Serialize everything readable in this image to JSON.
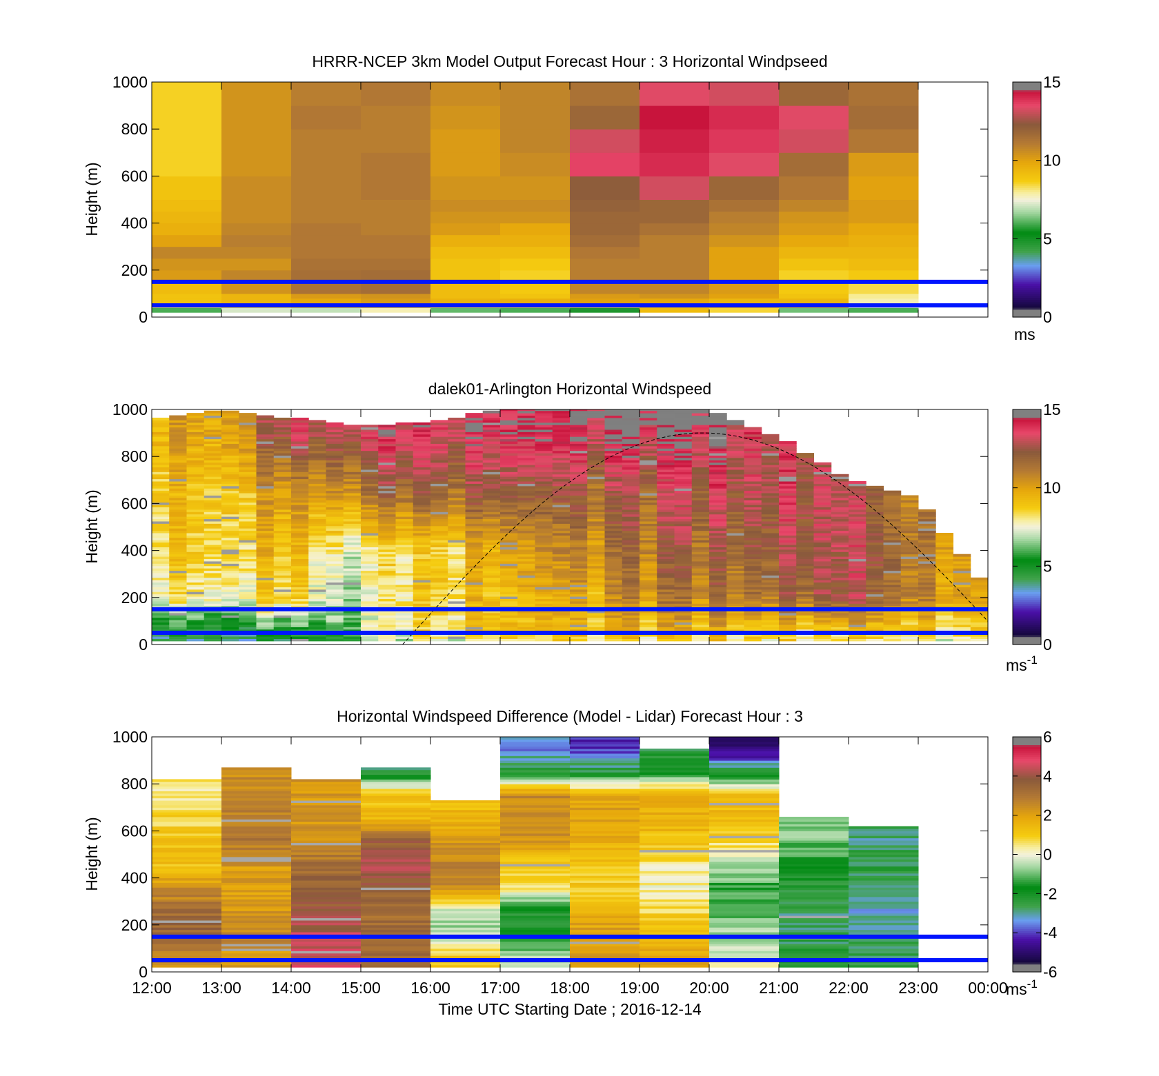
{
  "figure": {
    "xlabel": "Time UTC  Starting Date ; 2016-12-14",
    "x_ticks": [
      "12:00",
      "13:00",
      "14:00",
      "15:00",
      "16:00",
      "17:00",
      "18:00",
      "19:00",
      "20:00",
      "21:00",
      "22:00",
      "23:00",
      "00:00"
    ]
  },
  "colors": {
    "reference_lines": "#0015ff",
    "colormap_stops": [
      {
        "v": 0.0,
        "c": "#808080"
      },
      {
        "v": 0.03,
        "c": "#808080"
      },
      {
        "v": 0.04,
        "c": "#14083c"
      },
      {
        "v": 0.14,
        "c": "#4a10a8"
      },
      {
        "v": 0.22,
        "c": "#6a9ef0"
      },
      {
        "v": 0.28,
        "c": "#3fa24a"
      },
      {
        "v": 0.36,
        "c": "#008a12"
      },
      {
        "v": 0.45,
        "c": "#a9d9a6"
      },
      {
        "v": 0.5,
        "c": "#f4f1dc"
      },
      {
        "v": 0.53,
        "c": "#f7ee9e"
      },
      {
        "v": 0.58,
        "c": "#f5cc10"
      },
      {
        "v": 0.66,
        "c": "#e6a60c"
      },
      {
        "v": 0.74,
        "c": "#b47a33"
      },
      {
        "v": 0.82,
        "c": "#8a5a3c"
      },
      {
        "v": 0.9,
        "c": "#e8486a"
      },
      {
        "v": 0.96,
        "c": "#c8143c"
      },
      {
        "v": 0.97,
        "c": "#808080"
      },
      {
        "v": 1.0,
        "c": "#808080"
      }
    ]
  },
  "chart_data": [
    {
      "type": "heatmap",
      "title": "HRRR-NCEP 3km Model Output   Forecast Hour : 3 Horizontal Windpseed",
      "ylabel": "Height (m)",
      "yticks": [
        "0",
        "200",
        "400",
        "600",
        "800",
        "1000"
      ],
      "ylim": [
        0,
        1000
      ],
      "xlim": [
        "12:00",
        "00:00"
      ],
      "colorbar": {
        "ticks": [
          "0",
          "5",
          "10",
          "15"
        ],
        "range": [
          0,
          15
        ],
        "unit_main": "ms",
        "unit_sup": ""
      },
      "reference_heights_m": [
        50,
        150
      ],
      "columns": [
        "12:00",
        "13:00",
        "14:00",
        "15:00",
        "16:00",
        "17:00",
        "18:00",
        "19:00",
        "20:00",
        "21:00",
        "22:00"
      ],
      "levels_m": [
        [
          20,
          40
        ],
        [
          40,
          60
        ],
        [
          60,
          80
        ],
        [
          80,
          100
        ],
        [
          100,
          150
        ],
        [
          150,
          200
        ],
        [
          200,
          250
        ],
        [
          250,
          300
        ],
        [
          300,
          350
        ],
        [
          350,
          400
        ],
        [
          400,
          450
        ],
        [
          450,
          500
        ],
        [
          500,
          600
        ],
        [
          600,
          700
        ],
        [
          700,
          800
        ],
        [
          800,
          900
        ],
        [
          900,
          1000
        ]
      ],
      "values": [
        [
          6.0,
          7.2,
          7.0,
          7.8,
          6.2,
          6.0,
          4.8,
          9.2,
          8.5,
          6.3,
          6.0
        ],
        [
          8.3,
          8.6,
          9.0,
          9.2,
          8.5,
          8.5,
          8.5,
          9.4,
          9.6,
          9.2,
          7.6
        ],
        [
          9.0,
          9.4,
          9.8,
          10.2,
          9.5,
          9.6,
          10.0,
          9.8,
          9.4,
          9.4,
          7.8
        ],
        [
          9.0,
          9.4,
          10.2,
          10.4,
          9.2,
          9.0,
          10.2,
          10.4,
          10.0,
          9.0,
          8.0
        ],
        [
          9.2,
          10.4,
          11.4,
          11.6,
          9.2,
          8.8,
          10.8,
          10.8,
          10.2,
          8.8,
          8.4
        ],
        [
          10.2,
          10.8,
          11.5,
          11.6,
          9.0,
          8.6,
          11.0,
          11.0,
          10.0,
          8.6,
          8.8
        ],
        [
          10.4,
          10.4,
          11.4,
          11.4,
          9.0,
          8.8,
          11.0,
          11.0,
          10.0,
          9.0,
          9.2
        ],
        [
          10.8,
          10.8,
          11.2,
          11.2,
          9.2,
          9.2,
          11.2,
          11.0,
          10.0,
          9.4,
          9.4
        ],
        [
          10.0,
          11.0,
          11.2,
          11.2,
          9.6,
          9.6,
          11.6,
          11.0,
          10.4,
          9.8,
          9.6
        ],
        [
          9.6,
          10.8,
          11.2,
          11.0,
          10.2,
          9.8,
          11.8,
          11.4,
          10.8,
          10.2,
          9.8
        ],
        [
          9.4,
          10.6,
          11.0,
          11.0,
          10.4,
          10.4,
          11.8,
          11.8,
          11.0,
          10.4,
          10.2
        ],
        [
          9.2,
          10.6,
          11.0,
          11.0,
          10.6,
          10.6,
          12.0,
          11.8,
          11.4,
          10.8,
          10.2
        ],
        [
          9.0,
          10.6,
          11.0,
          11.2,
          10.4,
          10.4,
          12.2,
          13.2,
          11.8,
          11.2,
          10.0
        ],
        [
          8.6,
          10.4,
          11.0,
          11.2,
          10.2,
          10.6,
          13.6,
          14.0,
          13.4,
          11.6,
          10.2
        ],
        [
          8.6,
          10.4,
          11.0,
          11.0,
          10.2,
          10.8,
          13.2,
          14.2,
          13.8,
          13.2,
          11.2
        ],
        [
          8.6,
          10.4,
          11.2,
          11.0,
          10.4,
          10.8,
          11.8,
          14.4,
          14.0,
          13.4,
          11.6
        ],
        [
          8.6,
          10.4,
          11.0,
          11.2,
          10.6,
          10.8,
          11.4,
          13.4,
          13.2,
          11.8,
          11.4
        ]
      ]
    },
    {
      "type": "heatmap",
      "title": "dalek01-Arlington  Horizontal Windspeed",
      "ylabel": "Height (m)",
      "yticks": [
        "0",
        "200",
        "400",
        "600",
        "800",
        "1000"
      ],
      "ylim": [
        0,
        1000
      ],
      "xlim": [
        "12:00",
        "00:00"
      ],
      "colorbar": {
        "ticks": [
          "0",
          "5",
          "10",
          "15"
        ],
        "range": [
          0,
          15
        ],
        "unit_main": "ms",
        "unit_sup": "-1"
      },
      "reference_heights_m": [
        50,
        150
      ],
      "columns_hours": [
        0,
        1,
        2,
        3,
        4,
        5,
        6,
        7,
        8,
        9,
        10,
        11
      ],
      "profile_keys_hours": [
        0,
        1,
        2,
        3,
        4,
        5,
        6,
        7,
        8,
        9,
        10,
        11,
        11.9
      ],
      "profile_keys_values": {
        "near_surface": [
          5.2,
          5.4,
          5.0,
          6.8,
          8.4,
          8.8,
          9.0,
          9.2,
          9.4,
          9.0,
          8.8,
          8.8,
          8.6
        ],
        "low": [
          8.4,
          8.6,
          8.2,
          7.0,
          8.8,
          9.0,
          9.4,
          10.6,
          11.2,
          11.8,
          12.4,
          11.0,
          9.6
        ],
        "mid": [
          9.0,
          9.2,
          8.8,
          7.6,
          8.6,
          9.6,
          10.4,
          11.4,
          12.0,
          12.6,
          12.8,
          11.2,
          10.0
        ],
        "upper": [
          9.4,
          9.6,
          9.8,
          11.2,
          12.0,
          12.0,
          11.8,
          12.2,
          13.0,
          13.2,
          12.6,
          11.0,
          10.0
        ],
        "top": [
          10.0,
          10.6,
          12.6,
          13.4,
          13.6,
          13.8,
          14.0,
          14.2,
          14.4,
          13.4,
          12.0,
          10.8,
          10.0
        ]
      },
      "data_top_m_by_hour": [
        960,
        1000,
        960,
        930,
        940,
        1000,
        1000,
        1000,
        1000,
        880,
        700,
        620,
        230
      ],
      "boundary_layer_curve": {
        "start_hour": 3.6,
        "peak_hour": 7.9,
        "end_hour": 12.0,
        "peak_height_m": 900,
        "style": "dashed"
      }
    },
    {
      "type": "heatmap",
      "title": "Horizontal Windspeed Difference (Model - Lidar) Forecast Hour : 3",
      "ylabel": "Height (m)",
      "yticks": [
        "0",
        "200",
        "400",
        "600",
        "800",
        "1000"
      ],
      "ylim": [
        0,
        1000
      ],
      "xlim": [
        "12:00",
        "00:00"
      ],
      "colorbar": {
        "ticks": [
          "-6",
          "-4",
          "-2",
          "0",
          "2",
          "4",
          "6"
        ],
        "range": [
          -6,
          6
        ],
        "unit_main": "ms",
        "unit_sup": "-1"
      },
      "reference_heights_m": [
        50,
        150
      ],
      "columns": [
        "12:00",
        "13:00",
        "14:00",
        "15:00",
        "16:00",
        "17:00",
        "18:00",
        "19:00",
        "20:00",
        "21:00",
        "22:00"
      ],
      "column_top_m": [
        820,
        870,
        820,
        870,
        730,
        1000,
        1000,
        950,
        1000,
        660,
        620
      ],
      "levels_m": [
        [
          20,
          100
        ],
        [
          100,
          200
        ],
        [
          200,
          300
        ],
        [
          300,
          400
        ],
        [
          400,
          500
        ],
        [
          500,
          600
        ],
        [
          600,
          700
        ],
        [
          700,
          800
        ],
        [
          800,
          900
        ],
        [
          900,
          1000
        ]
      ],
      "values": [
        [
          2.6,
          2.2,
          4.6,
          3.4,
          1.2,
          -0.4,
          2.2,
          1.8,
          0.0,
          -2.4,
          -2.6
        ],
        [
          3.6,
          2.6,
          4.4,
          3.4,
          -0.6,
          -2.0,
          2.2,
          1.6,
          -0.6,
          -2.6,
          -2.8
        ],
        [
          3.2,
          2.2,
          3.8,
          3.2,
          -0.4,
          -2.4,
          1.6,
          0.8,
          -1.2,
          -2.8,
          -3.2
        ],
        [
          2.4,
          2.0,
          3.6,
          3.6,
          2.4,
          0.6,
          1.0,
          0.2,
          -1.4,
          -2.4,
          -2.8
        ],
        [
          1.2,
          2.2,
          3.2,
          4.2,
          2.8,
          1.0,
          1.2,
          0.4,
          -0.4,
          -1.6,
          -2.4
        ],
        [
          1.2,
          3.0,
          2.4,
          3.6,
          2.2,
          2.4,
          1.6,
          1.2,
          0.8,
          -1.0,
          -2.8
        ],
        [
          0.8,
          2.8,
          2.2,
          1.4,
          1.6,
          2.6,
          2.0,
          1.6,
          1.4,
          -0.6,
          -2.6
        ],
        [
          0.4,
          2.6,
          2.2,
          1.2,
          1.0,
          2.4,
          1.8,
          1.8,
          1.2,
          -0.6,
          -2.6
        ],
        [
          0.6,
          2.4,
          2.2,
          -2.6,
          1.0,
          -2.2,
          -2.4,
          -1.8,
          -2.4,
          -0.6,
          -2.6
        ],
        [
          0.6,
          2.4,
          2.2,
          -2.6,
          1.0,
          -3.6,
          -4.2,
          -2.6,
          -5.2,
          -0.6,
          -2.6
        ]
      ]
    }
  ]
}
